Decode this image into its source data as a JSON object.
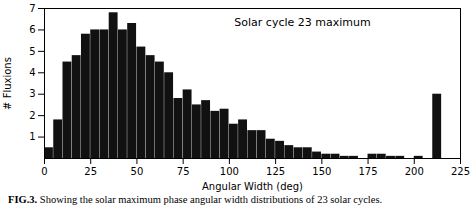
{
  "chart_data": {
    "type": "bar",
    "title": "Solar cycle 23 maximum",
    "caption_label": "FIG.3.",
    "caption": "Showing the solar maximum phase angular width distributions of 23 solar cycles.",
    "xlabel": "Angular Width (deg)",
    "ylabel": "# Fluxions",
    "x": [
      0,
      5,
      10,
      15,
      20,
      25,
      30,
      35,
      40,
      45,
      50,
      55,
      60,
      65,
      70,
      75,
      80,
      85,
      90,
      95,
      100,
      105,
      110,
      115,
      120,
      125,
      130,
      135,
      140,
      145,
      150,
      155,
      160,
      165,
      170,
      175,
      180,
      185,
      190,
      195,
      200,
      210
    ],
    "values": [
      0.5,
      1.8,
      4.5,
      4.8,
      5.8,
      6.0,
      6.0,
      6.8,
      6.0,
      6.3,
      5.2,
      4.8,
      4.5,
      4.0,
      2.8,
      3.2,
      2.5,
      2.7,
      2.2,
      2.3,
      1.6,
      1.8,
      1.3,
      1.3,
      0.9,
      0.8,
      0.6,
      0.5,
      0.5,
      0.3,
      0.2,
      0.2,
      0.1,
      0.1,
      0.0,
      0.2,
      0.2,
      0.1,
      0.1,
      0.0,
      0.1,
      3.0
    ],
    "color": "#111111",
    "xlim": [
      0,
      225
    ],
    "ylim": [
      0,
      7
    ],
    "xticks": [
      0,
      25,
      50,
      75,
      100,
      125,
      150,
      175,
      200,
      225
    ],
    "yticks": [
      1,
      2,
      3,
      4,
      5,
      6,
      7
    ]
  }
}
